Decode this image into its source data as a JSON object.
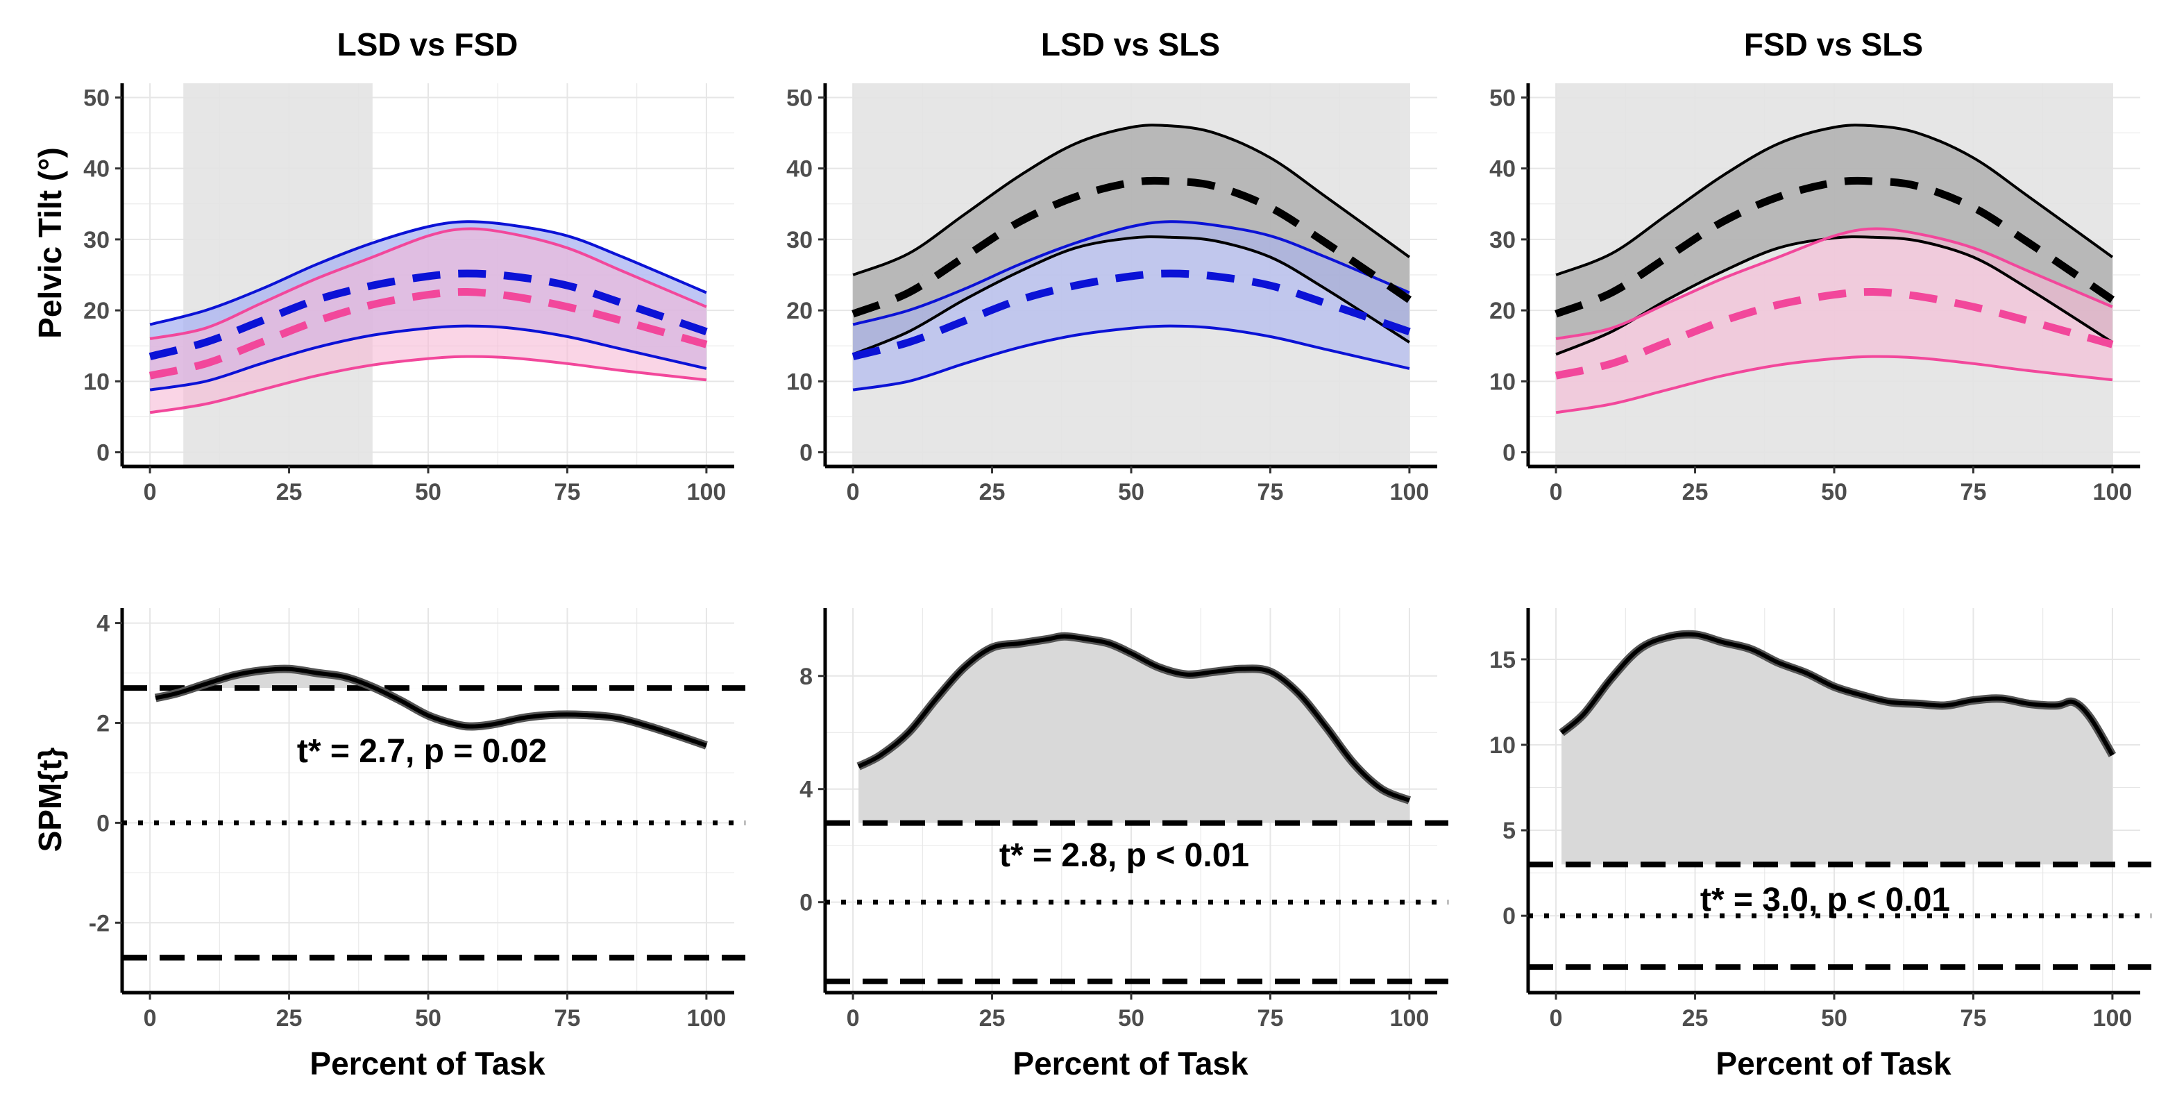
{
  "figure": {
    "xlabel": "Percent of Task",
    "ylabel_top": "Pelvic Tilt (°)",
    "ylabel_bottom": "SPM{t}"
  },
  "colors": {
    "lsd": "#0b12d6",
    "lsd_fill": "#a9b3f2",
    "fsd": "#f2479b",
    "fsd_fill": "#f7b9d6",
    "overlap_fill": "#c7a8e6",
    "sls": "#000000",
    "sls_fill": "#a8a8a8",
    "sig_shade": "#e3e3e3",
    "spm_fill": "#d9d9d9",
    "grid": "#e6e6e6"
  },
  "chart_data": [
    {
      "type": "area",
      "title": "LSD vs FSD",
      "xlabel": "",
      "ylabel": "Pelvic Tilt (°)",
      "xlim": [
        -5,
        105
      ],
      "ylim": [
        -2,
        52
      ],
      "xticks": [
        0,
        25,
        50,
        75,
        100
      ],
      "yticks": [
        0,
        10,
        20,
        30,
        40,
        50
      ],
      "significant_region": [
        6,
        40
      ],
      "x": [
        0,
        10,
        20,
        30,
        40,
        50,
        57,
        65,
        75,
        85,
        100
      ],
      "series": [
        {
          "name": "LSD",
          "color": "lsd",
          "fill": "lsd_fill",
          "mean": [
            13.5,
            15.5,
            18.5,
            21.5,
            23.5,
            24.8,
            25.2,
            24.8,
            23.5,
            21.0,
            17.0
          ],
          "upper": [
            18.0,
            20.0,
            23.0,
            26.5,
            29.5,
            31.8,
            32.5,
            32.0,
            30.5,
            27.5,
            22.5
          ],
          "lower": [
            8.8,
            10.0,
            12.5,
            14.8,
            16.5,
            17.5,
            17.8,
            17.5,
            16.3,
            14.5,
            11.8
          ]
        },
        {
          "name": "FSD",
          "color": "fsd",
          "fill": "fsd_fill",
          "mean": [
            10.8,
            12.5,
            15.5,
            18.5,
            20.8,
            22.2,
            22.6,
            22.0,
            20.5,
            18.5,
            15.2
          ],
          "upper": [
            16.0,
            17.5,
            21.0,
            24.5,
            27.5,
            30.5,
            31.5,
            30.8,
            28.8,
            25.5,
            20.5
          ],
          "lower": [
            5.6,
            6.8,
            8.8,
            10.8,
            12.3,
            13.2,
            13.5,
            13.3,
            12.5,
            11.5,
            10.2
          ]
        }
      ]
    },
    {
      "type": "area",
      "title": "LSD vs SLS",
      "xlabel": "",
      "ylabel": "",
      "xlim": [
        -5,
        105
      ],
      "ylim": [
        -2,
        52
      ],
      "xticks": [
        0,
        25,
        50,
        75,
        100
      ],
      "yticks": [
        0,
        10,
        20,
        30,
        40,
        50
      ],
      "significant_region": [
        0,
        100
      ],
      "x": [
        0,
        10,
        20,
        30,
        40,
        50,
        57,
        65,
        75,
        85,
        100
      ],
      "series": [
        {
          "name": "SLS",
          "color": "sls",
          "fill": "sls_fill",
          "mean": [
            19.5,
            22.5,
            27.5,
            32.5,
            36.0,
            38.0,
            38.2,
            37.5,
            34.5,
            29.5,
            21.5
          ],
          "upper": [
            25.0,
            28.0,
            33.5,
            39.0,
            43.5,
            45.8,
            46.0,
            45.0,
            41.5,
            36.0,
            27.5
          ],
          "lower": [
            13.8,
            17.0,
            21.5,
            25.5,
            28.8,
            30.2,
            30.3,
            29.8,
            27.5,
            23.0,
            15.5
          ]
        },
        {
          "name": "LSD",
          "color": "lsd",
          "fill": "lsd_fill",
          "mean": [
            13.5,
            15.5,
            18.5,
            21.5,
            23.5,
            24.8,
            25.2,
            24.8,
            23.5,
            21.0,
            17.0
          ],
          "upper": [
            18.0,
            20.0,
            23.0,
            26.5,
            29.5,
            31.8,
            32.5,
            32.0,
            30.5,
            27.5,
            22.5
          ],
          "lower": [
            8.8,
            10.0,
            12.5,
            14.8,
            16.5,
            17.5,
            17.8,
            17.5,
            16.3,
            14.5,
            11.8
          ]
        }
      ]
    },
    {
      "type": "area",
      "title": "FSD vs SLS",
      "xlabel": "",
      "ylabel": "",
      "xlim": [
        -5,
        105
      ],
      "ylim": [
        -2,
        52
      ],
      "xticks": [
        0,
        25,
        50,
        75,
        100
      ],
      "yticks": [
        0,
        10,
        20,
        30,
        40,
        50
      ],
      "significant_region": [
        0,
        100
      ],
      "x": [
        0,
        10,
        20,
        30,
        40,
        50,
        57,
        65,
        75,
        85,
        100
      ],
      "series": [
        {
          "name": "SLS",
          "color": "sls",
          "fill": "sls_fill",
          "mean": [
            19.5,
            22.5,
            27.5,
            32.5,
            36.0,
            38.0,
            38.2,
            37.5,
            34.5,
            29.5,
            21.5
          ],
          "upper": [
            25.0,
            28.0,
            33.5,
            39.0,
            43.5,
            45.8,
            46.0,
            45.0,
            41.5,
            36.0,
            27.5
          ],
          "lower": [
            13.8,
            17.0,
            21.5,
            25.5,
            28.8,
            30.2,
            30.3,
            29.8,
            27.5,
            23.0,
            15.5
          ]
        },
        {
          "name": "FSD",
          "color": "fsd",
          "fill": "fsd_fill",
          "mean": [
            10.8,
            12.5,
            15.5,
            18.5,
            20.8,
            22.2,
            22.6,
            22.0,
            20.5,
            18.5,
            15.2
          ],
          "upper": [
            16.0,
            17.5,
            21.0,
            24.5,
            27.5,
            30.5,
            31.5,
            30.8,
            28.8,
            25.5,
            20.5
          ],
          "lower": [
            5.6,
            6.8,
            8.8,
            10.8,
            12.3,
            13.2,
            13.5,
            13.3,
            12.5,
            11.5,
            10.2
          ]
        }
      ]
    },
    {
      "type": "line",
      "title": "",
      "xlabel": "Percent of Task",
      "ylabel": "SPM{t}",
      "xlim": [
        -5,
        105
      ],
      "ylim": [
        -3.4,
        4.3
      ],
      "xticks": [
        0,
        25,
        50,
        75,
        100
      ],
      "yticks": [
        -2,
        0,
        2,
        4
      ],
      "threshold": 2.7,
      "annotation": "t* = 2.7, p = 0.02",
      "annotation_at": [
        50,
        1.45
      ],
      "x": [
        1,
        5,
        10,
        15,
        20,
        25,
        30,
        35,
        40,
        45,
        50,
        55,
        58,
        62,
        67,
        72,
        78,
        84,
        90,
        95,
        100
      ],
      "y": [
        2.5,
        2.6,
        2.78,
        2.95,
        3.05,
        3.08,
        3.0,
        2.92,
        2.72,
        2.45,
        2.15,
        1.97,
        1.93,
        1.98,
        2.1,
        2.16,
        2.16,
        2.1,
        1.92,
        1.74,
        1.55
      ]
    },
    {
      "type": "line",
      "title": "",
      "xlabel": "Percent of Task",
      "ylabel": "",
      "xlim": [
        -5,
        105
      ],
      "ylim": [
        -3.2,
        10.4
      ],
      "xticks": [
        0,
        25,
        50,
        75,
        100
      ],
      "yticks": [
        0,
        4,
        8
      ],
      "threshold": 2.8,
      "annotation": "t* = 2.8, p < 0.01",
      "annotation_at": [
        50,
        1.5
      ],
      "x": [
        1,
        5,
        10,
        15,
        20,
        25,
        30,
        35,
        38,
        42,
        46,
        50,
        55,
        60,
        65,
        70,
        75,
        80,
        85,
        90,
        95,
        100
      ],
      "y": [
        4.8,
        5.2,
        6.0,
        7.2,
        8.3,
        9.0,
        9.15,
        9.3,
        9.4,
        9.3,
        9.15,
        8.8,
        8.3,
        8.05,
        8.15,
        8.25,
        8.15,
        7.4,
        6.2,
        4.9,
        4.0,
        3.6
      ]
    },
    {
      "type": "line",
      "title": "",
      "xlabel": "Percent of Task",
      "ylabel": "",
      "xlim": [
        -5,
        105
      ],
      "ylim": [
        -4.5,
        18.0
      ],
      "xticks": [
        0,
        25,
        50,
        75,
        100
      ],
      "yticks": [
        0,
        5,
        10,
        15
      ],
      "threshold": 3.0,
      "annotation": "t* = 3.0, p < 0.01",
      "annotation_at": [
        50,
        1.6
      ],
      "x": [
        1,
        5,
        10,
        15,
        20,
        25,
        30,
        35,
        40,
        45,
        50,
        55,
        60,
        65,
        70,
        75,
        80,
        85,
        90,
        93,
        96,
        100
      ],
      "y": [
        10.7,
        11.8,
        13.9,
        15.6,
        16.3,
        16.45,
        16.0,
        15.6,
        14.8,
        14.2,
        13.4,
        12.9,
        12.5,
        12.4,
        12.3,
        12.6,
        12.7,
        12.4,
        12.3,
        12.5,
        11.6,
        9.4
      ]
    }
  ]
}
